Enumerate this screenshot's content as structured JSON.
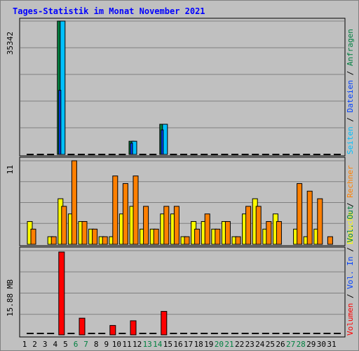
{
  "chart_data": [
    {
      "type": "bar",
      "title": "Tages-Statistik im Monat November 2021",
      "panel": "top",
      "ytick": "35342",
      "ylim": [
        0,
        35342
      ],
      "legend": [
        {
          "name": "Anfragen",
          "color": "#008040"
        },
        {
          "name": "Dateien",
          "color": "#0040ff"
        },
        {
          "name": "Seiten",
          "color": "#00c0ff"
        }
      ],
      "categories": [
        "1",
        "2",
        "3",
        "4",
        "5",
        "6",
        "7",
        "8",
        "9",
        "10",
        "11",
        "12",
        "13",
        "14",
        "15",
        "16",
        "17",
        "18",
        "19",
        "20",
        "21",
        "22",
        "23",
        "24",
        "25",
        "26",
        "27",
        "28",
        "29",
        "30",
        "31"
      ],
      "weekend_days": [
        6,
        7,
        13,
        14,
        20,
        21,
        27,
        28
      ],
      "series": [
        {
          "name": "Anfragen",
          "values": [
            0,
            0,
            0,
            35342,
            0,
            0,
            0,
            0,
            0,
            0,
            3500,
            0,
            0,
            8000,
            0,
            0,
            0,
            0,
            0,
            0,
            0,
            0,
            0,
            0,
            0,
            0,
            0,
            0,
            0,
            0,
            0
          ]
        },
        {
          "name": "Dateien",
          "values": [
            0,
            0,
            0,
            17000,
            0,
            0,
            0,
            0,
            0,
            0,
            3000,
            0,
            0,
            6500,
            0,
            0,
            0,
            0,
            0,
            0,
            0,
            0,
            0,
            0,
            0,
            0,
            0,
            0,
            0,
            0,
            0
          ]
        },
        {
          "name": "Seiten",
          "values": [
            0,
            0,
            0,
            35342,
            0,
            0,
            0,
            0,
            0,
            0,
            3500,
            0,
            0,
            8000,
            0,
            0,
            0,
            0,
            0,
            0,
            0,
            0,
            0,
            0,
            0,
            0,
            0,
            0,
            0,
            0,
            0
          ]
        }
      ]
    },
    {
      "type": "bar",
      "panel": "middle",
      "ytick": "11",
      "ylim": [
        0,
        11
      ],
      "legend": [
        {
          "name": "Besuche",
          "color": "#ffff00"
        },
        {
          "name": "Rechner",
          "color": "#ff8000"
        }
      ],
      "series": [
        {
          "name": "Besuche",
          "values": [
            3,
            0,
            1,
            6,
            4,
            3,
            2,
            1,
            1,
            4,
            5,
            2,
            2,
            4,
            4,
            1,
            3,
            3,
            2,
            3,
            1,
            4,
            6,
            2,
            4,
            0,
            2,
            1,
            2,
            0,
            0
          ]
        },
        {
          "name": "Rechner",
          "values": [
            2,
            0,
            1,
            5,
            11,
            3,
            2,
            1,
            9,
            8,
            9,
            5,
            2,
            5,
            5,
            1,
            2,
            4,
            2,
            3,
            1,
            5,
            5,
            3,
            3,
            0,
            8,
            7,
            6,
            1,
            0
          ]
        }
      ]
    },
    {
      "type": "bar",
      "panel": "bottom",
      "ytick": "15.88 MB",
      "ylim": [
        0,
        15.88
      ],
      "legend": [
        {
          "name": "Vol. Out",
          "color": "#008040"
        },
        {
          "name": "Vol. In",
          "color": "#0040ff"
        },
        {
          "name": "Volumen",
          "color": "#ff0000"
        }
      ],
      "series": [
        {
          "name": "Volumen",
          "values": [
            0,
            0,
            0,
            15.88,
            0,
            3.2,
            0,
            0,
            1.8,
            0,
            2.7,
            0,
            0,
            4.5,
            0,
            0,
            0,
            0,
            0,
            0,
            0,
            0,
            0,
            0,
            0,
            0,
            0,
            0,
            0,
            0,
            0
          ]
        }
      ]
    }
  ],
  "colors": {
    "background": "#c0c0c0",
    "frame": "#808080",
    "title": "#0000ff",
    "weekday_label": "#000000",
    "weekend_label": "#008040",
    "baseline_dash": "#000000"
  },
  "separator": " / "
}
